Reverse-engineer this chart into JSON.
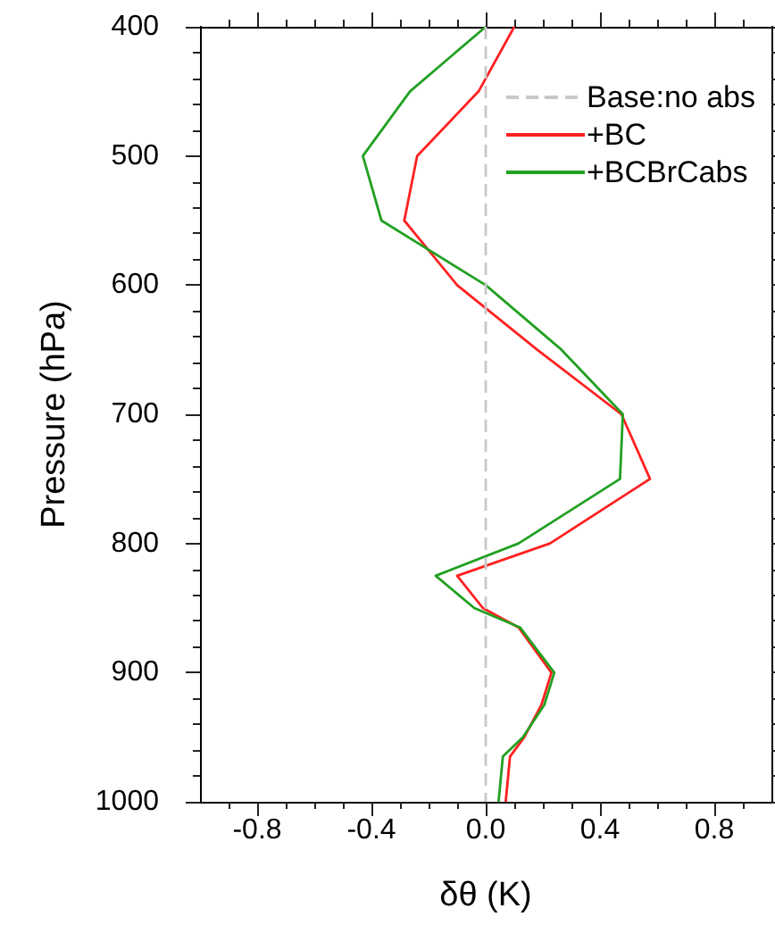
{
  "chart_data": {
    "type": "line",
    "xlabel": "δθ (K)",
    "ylabel": "Pressure (hPa)",
    "xlim": [
      -1,
      1
    ],
    "xticks": [
      {
        "value": -0.9,
        "label": null
      },
      -0.8,
      {
        "value": -0.7,
        "label": null
      },
      {
        "value": -0.6,
        "label": null
      },
      {
        "value": -0.5,
        "label": null
      },
      -0.4,
      {
        "value": -0.3,
        "label": null
      },
      {
        "value": -0.2,
        "label": null
      },
      {
        "value": -0.1,
        "label": null
      },
      {
        "value": 0,
        "label": "0.0"
      },
      {
        "value": 0.1,
        "label": null
      },
      {
        "value": 0.2,
        "label": null
      },
      {
        "value": 0.3,
        "label": null
      },
      0.4,
      {
        "value": 0.5,
        "label": null
      },
      {
        "value": 0.6,
        "label": null
      },
      {
        "value": 0.7,
        "label": null
      },
      0.8,
      {
        "value": 0.9,
        "label": null
      }
    ],
    "ylim": [
      1000,
      400
    ],
    "yticks": [
      400,
      {
        "value": 420,
        "label": null
      },
      {
        "value": 440,
        "label": null
      },
      {
        "value": 460,
        "label": null
      },
      {
        "value": 480,
        "label": null
      },
      500,
      {
        "value": 520,
        "label": null
      },
      {
        "value": 540,
        "label": null
      },
      {
        "value": 560,
        "label": null
      },
      {
        "value": 580,
        "label": null
      },
      600,
      {
        "value": 620,
        "label": null
      },
      {
        "value": 640,
        "label": null
      },
      {
        "value": 660,
        "label": null
      },
      {
        "value": 680,
        "label": null
      },
      700,
      {
        "value": 720,
        "label": null
      },
      {
        "value": 740,
        "label": null
      },
      {
        "value": 760,
        "label": null
      },
      {
        "value": 780,
        "label": null
      },
      800,
      {
        "value": 820,
        "label": null
      },
      {
        "value": 840,
        "label": null
      },
      {
        "value": 860,
        "label": null
      },
      {
        "value": 880,
        "label": null
      },
      900,
      {
        "value": 920,
        "label": null
      },
      {
        "value": 940,
        "label": null
      },
      {
        "value": 960,
        "label": null
      },
      {
        "value": 980,
        "label": null
      },
      1000
    ],
    "series": [
      {
        "name": "Base:no abs",
        "color": "#c8c8c8",
        "line_style": "dashed",
        "x": [
          0,
          0,
          0,
          0,
          0,
          0,
          0,
          0,
          0,
          0,
          0,
          0,
          0,
          0,
          0,
          0,
          0
        ],
        "values": [
          400,
          450,
          500,
          550,
          600,
          650,
          700,
          750,
          800,
          825,
          850,
          865,
          900,
          925,
          950,
          965,
          1000
        ]
      },
      {
        "name": "+BC",
        "color": "#ff2020",
        "x": [
          0.1,
          -0.025,
          -0.24,
          -0.285,
          -0.1,
          0.18,
          0.475,
          0.575,
          0.225,
          -0.1,
          -0.01,
          0.115,
          0.23,
          0.195,
          0.135,
          0.085,
          0.07
        ],
        "values": [
          400,
          450,
          500,
          550,
          600,
          650,
          700,
          750,
          800,
          825,
          850,
          865,
          900,
          925,
          950,
          965,
          1000
        ]
      },
      {
        "name": "+BCBrCabs",
        "color": "#22a022",
        "x": [
          0,
          -0.265,
          -0.43,
          -0.365,
          0,
          0.265,
          0.48,
          0.47,
          0.115,
          -0.175,
          -0.04,
          0.12,
          0.24,
          0.205,
          0.13,
          0.06,
          0.045
        ],
        "values": [
          400,
          450,
          500,
          550,
          600,
          650,
          700,
          750,
          800,
          825,
          850,
          865,
          900,
          925,
          950,
          965,
          1000
        ]
      }
    ],
    "line_style": "solid",
    "marker": "none",
    "grid": false,
    "legend": "top right"
  }
}
